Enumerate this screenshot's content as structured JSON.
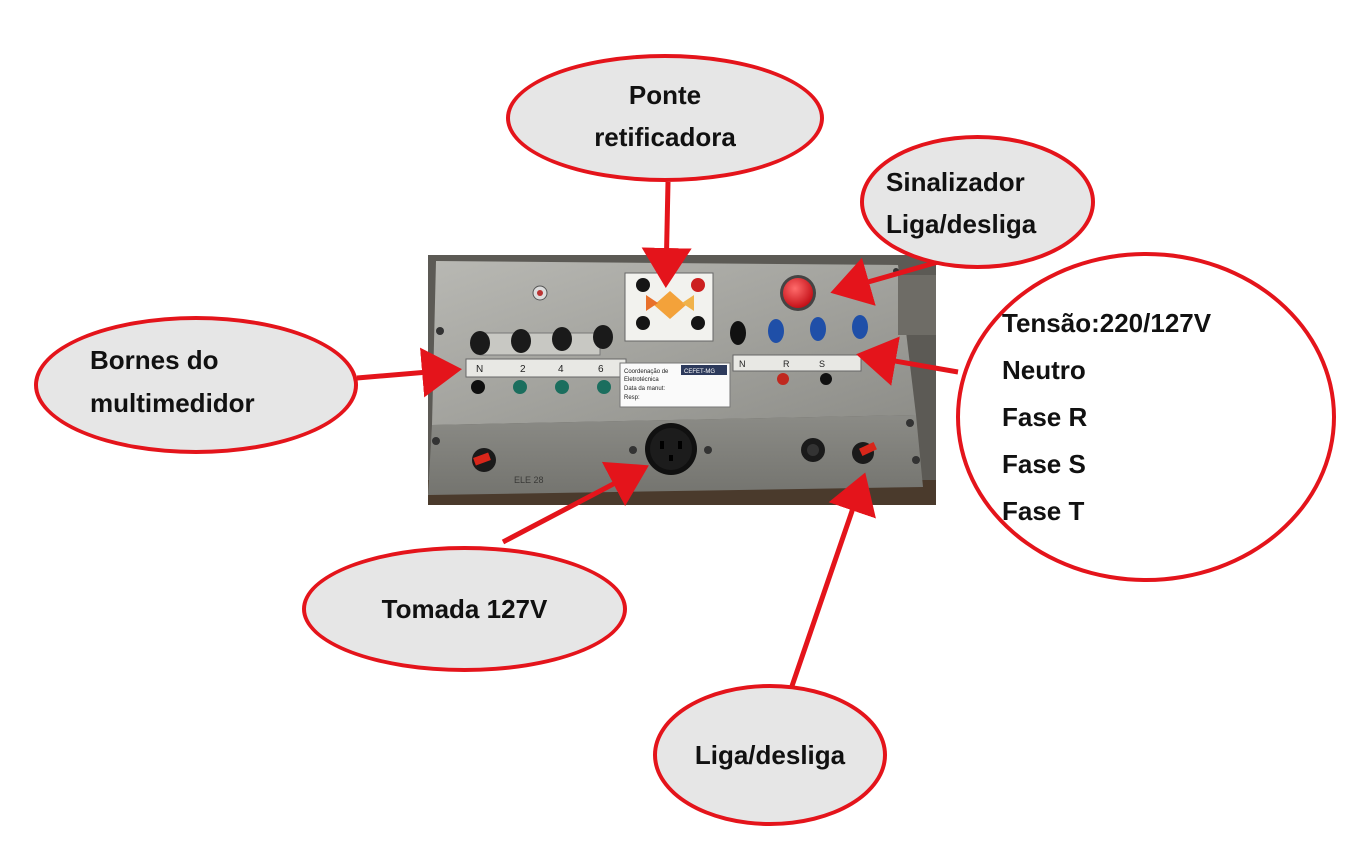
{
  "callouts": {
    "ponte": {
      "line1": "Ponte",
      "line2": "retificadora"
    },
    "sinalizador": {
      "line1": "Sinalizador",
      "line2": "Liga/desliga"
    },
    "bornes": {
      "line1": "Bornes do",
      "line2": "multimedidor"
    },
    "tensao": {
      "lines": [
        "Tensão:220/127V",
        "Neutro",
        "Fase R",
        "Fase S",
        "Fase T"
      ]
    },
    "tomada": {
      "label": "Tomada 127V"
    },
    "ligadesliga": {
      "label": "Liga/desliga"
    }
  },
  "panel": {
    "meter_labels": [
      "N",
      "2",
      "4",
      "6"
    ],
    "supply_labels": [
      "N",
      "R",
      "S"
    ],
    "id_label": {
      "line1": "Coordenação de",
      "line2": "Eletrotécnica",
      "line3": "Data da manut:",
      "line4": "Resp:",
      "brand": "CEFET-MG"
    },
    "scribble": "ELE 28"
  },
  "colors": {
    "callout_fill": "#e6e6e6",
    "callout_border": "#e4141b",
    "arrow": "#e4141b",
    "panel_metal": "#9a9a96",
    "lamp": "#e0101a"
  }
}
